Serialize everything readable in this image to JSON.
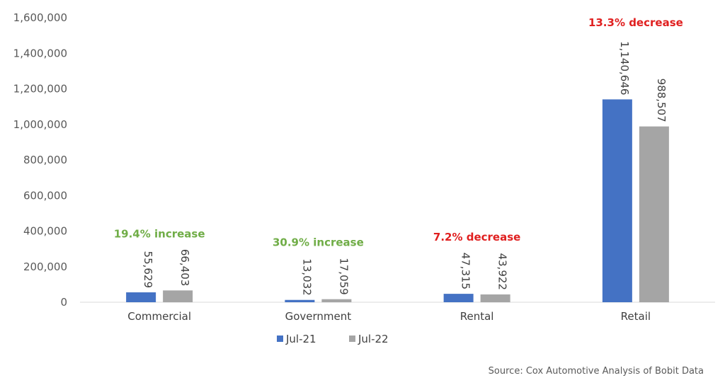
{
  "chart_data": {
    "type": "bar",
    "categories": [
      "Commercial",
      "Government",
      "Rental",
      "Retail"
    ],
    "series": [
      {
        "name": "Jul-21",
        "color": "#4472C4",
        "values": [
          55629,
          13032,
          47315,
          1140646
        ],
        "labels": [
          "55,629",
          "13,032",
          "47,315",
          "1,140,646"
        ]
      },
      {
        "name": "Jul-22",
        "color": "#A5A5A5",
        "values": [
          66403,
          17059,
          43922,
          988507
        ],
        "labels": [
          "66,403",
          "17,059",
          "43,922",
          "988,507"
        ]
      }
    ],
    "ylim": [
      0,
      1600000
    ],
    "yticks": [
      0,
      200000,
      400000,
      600000,
      800000,
      1000000,
      1200000,
      1400000,
      1600000
    ],
    "ytick_labels": [
      "0",
      "200,000",
      "400,000",
      "600,000",
      "800,000",
      "1,000,000",
      "1,200,000",
      "1,400,000",
      "1,600,000"
    ],
    "grid": false,
    "legend_position": "bottom",
    "annotations": [
      {
        "text": "19.4% increase",
        "color": "#70AD47"
      },
      {
        "text": "30.9% increase",
        "color": "#70AD47"
      },
      {
        "text": "7.2% decrease",
        "color": "#E02020"
      },
      {
        "text": "13.3% decrease",
        "color": "#E02020"
      }
    ]
  },
  "source": "Source: Cox Automotive Analysis of Bobit Data"
}
